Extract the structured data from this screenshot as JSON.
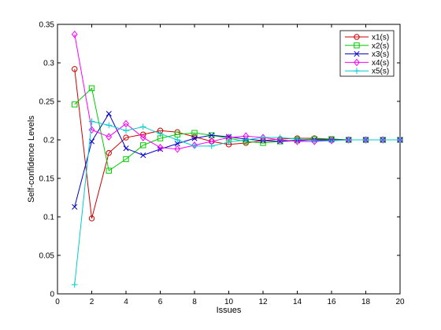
{
  "chart_data": {
    "type": "line",
    "title": "",
    "xlabel": "Issues",
    "ylabel": "Self-confidence Levels",
    "xlim": [
      0,
      20
    ],
    "ylim": [
      0,
      0.35
    ],
    "xticks": [
      0,
      2,
      4,
      6,
      8,
      10,
      12,
      14,
      16,
      18,
      20
    ],
    "xtick_labels": [
      "0",
      "2",
      "4",
      "6",
      "8",
      "10",
      "12",
      "14",
      "16",
      "18",
      "20"
    ],
    "yticks": [
      0,
      0.05,
      0.1,
      0.15,
      0.2,
      0.25,
      0.3,
      0.35
    ],
    "ytick_labels": [
      "0",
      "0.05",
      "0.1",
      "0.15",
      "0.2",
      "0.25",
      "0.3",
      "0.35"
    ],
    "grid": false,
    "legend_position": "top-right",
    "x": [
      1,
      2,
      3,
      4,
      5,
      6,
      7,
      8,
      9,
      10,
      11,
      12,
      13,
      14,
      15,
      16,
      17,
      18,
      19,
      20
    ],
    "series": [
      {
        "name": "x1(s)",
        "color": "#cc0000",
        "marker": "circle",
        "values": [
          0.292,
          0.098,
          0.183,
          0.203,
          0.207,
          0.212,
          0.21,
          0.204,
          0.198,
          0.194,
          0.196,
          0.199,
          0.201,
          0.202,
          0.202,
          0.201,
          0.2,
          0.2,
          0.2,
          0.2
        ]
      },
      {
        "name": "x2(s)",
        "color": "#00cc00",
        "marker": "square",
        "values": [
          0.246,
          0.267,
          0.16,
          0.175,
          0.193,
          0.202,
          0.207,
          0.209,
          0.206,
          0.202,
          0.198,
          0.196,
          0.198,
          0.2,
          0.201,
          0.201,
          0.2,
          0.2,
          0.2,
          0.2
        ]
      },
      {
        "name": "x3(s)",
        "color": "#0000cc",
        "marker": "x",
        "values": [
          0.113,
          0.198,
          0.234,
          0.189,
          0.18,
          0.188,
          0.195,
          0.202,
          0.206,
          0.204,
          0.201,
          0.199,
          0.198,
          0.199,
          0.2,
          0.2,
          0.2,
          0.2,
          0.2,
          0.2
        ]
      },
      {
        "name": "x4(s)",
        "color": "#ff00ff",
        "marker": "diamond",
        "values": [
          0.337,
          0.213,
          0.204,
          0.221,
          0.203,
          0.19,
          0.188,
          0.193,
          0.198,
          0.203,
          0.205,
          0.203,
          0.2,
          0.198,
          0.198,
          0.199,
          0.2,
          0.2,
          0.2,
          0.2
        ]
      },
      {
        "name": "x5(s)",
        "color": "#00cccc",
        "marker": "plus",
        "values": [
          0.012,
          0.224,
          0.219,
          0.212,
          0.217,
          0.208,
          0.2,
          0.192,
          0.192,
          0.197,
          0.2,
          0.203,
          0.203,
          0.201,
          0.199,
          0.199,
          0.2,
          0.2,
          0.2,
          0.2
        ]
      }
    ]
  }
}
